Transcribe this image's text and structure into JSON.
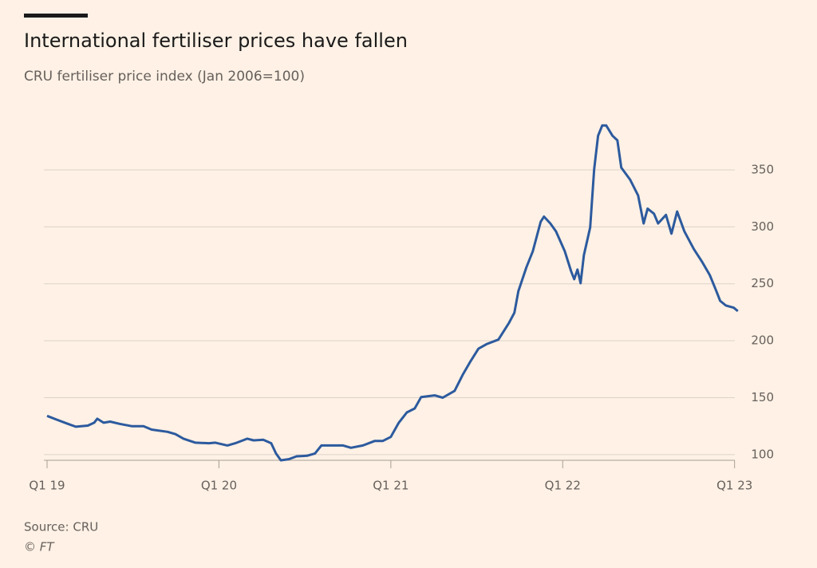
{
  "chart_data": {
    "type": "line",
    "title": "International fertiliser prices have fallen",
    "subtitle": "CRU fertiliser price index (Jan 2006=100)",
    "source": "Source: CRU",
    "copyright": "© FT",
    "x": [
      2019.0,
      2019.051,
      2019.121,
      2019.167,
      2019.237,
      2019.274,
      2019.292,
      2019.329,
      2019.367,
      2019.422,
      2019.492,
      2019.561,
      2019.608,
      2019.701,
      2019.747,
      2019.794,
      2019.863,
      2019.942,
      2019.979,
      2020.049,
      2020.095,
      2020.165,
      2020.202,
      2020.258,
      2020.304,
      2020.332,
      2020.36,
      2020.406,
      2020.452,
      2020.513,
      2020.559,
      2020.596,
      2020.652,
      2020.722,
      2020.768,
      2020.838,
      2020.907,
      2020.954,
      2021.0,
      2021.046,
      2021.093,
      2021.139,
      2021.176,
      2021.255,
      2021.302,
      2021.371,
      2021.418,
      2021.464,
      2021.51,
      2021.557,
      2021.626,
      2021.687,
      2021.719,
      2021.742,
      2021.789,
      2021.826,
      2021.872,
      2021.891,
      2021.928,
      2021.961,
      2022.012,
      2022.049,
      2022.067,
      2022.086,
      2022.104,
      2022.123,
      2022.16,
      2022.183,
      2022.206,
      2022.23,
      2022.253,
      2022.29,
      2022.318,
      2022.341,
      2022.392,
      2022.439,
      2022.471,
      2022.494,
      2022.531,
      2022.555,
      2022.601,
      2022.633,
      2022.666,
      2022.708,
      2022.763,
      2022.81,
      2022.856,
      2022.893,
      2022.916,
      2022.949,
      2022.995,
      2023.019
    ],
    "series": [
      {
        "color": "#2c5a9e",
        "values": [
          134,
          131,
          127,
          124.5,
          125.5,
          128,
          131.5,
          128,
          129,
          127,
          125,
          125,
          122,
          120,
          118,
          114,
          110.5,
          110,
          110.5,
          108,
          110,
          114,
          112.5,
          113,
          110,
          101,
          95,
          96,
          98.5,
          99,
          101,
          108,
          108,
          108,
          106,
          108,
          112,
          112,
          115.5,
          128,
          137,
          140.5,
          150.5,
          152,
          150,
          156,
          170,
          182,
          193,
          197,
          201,
          215.5,
          224.5,
          243.5,
          264.5,
          278.5,
          304.5,
          309,
          303,
          296,
          278.5,
          261,
          254,
          262.5,
          250.5,
          275,
          299.5,
          350.5,
          380,
          389,
          389,
          380,
          376,
          352,
          341.5,
          327.5,
          303,
          316,
          311.5,
          303,
          310.5,
          294,
          313.5,
          296,
          280.5,
          269.5,
          257.5,
          244,
          235,
          231,
          229,
          226
        ]
      }
    ],
    "xlim": [
      2019,
      2023.02
    ],
    "xticks": [
      {
        "value": 2019,
        "label": "Q1 19"
      },
      {
        "value": 2020,
        "label": "Q1 20"
      },
      {
        "value": 2021,
        "label": "Q1 21"
      },
      {
        "value": 2022,
        "label": "Q1 22"
      },
      {
        "value": 2023,
        "label": "Q1 23"
      }
    ],
    "ylim": [
      95,
      400
    ],
    "yticks": [
      100,
      150,
      200,
      250,
      300,
      350
    ],
    "grid": true
  }
}
